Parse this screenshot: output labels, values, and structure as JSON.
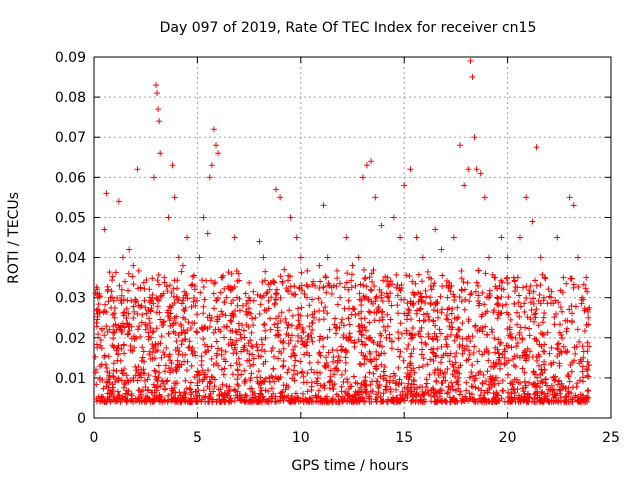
{
  "chart_data": {
    "type": "scatter",
    "title": "Day 097 of 2019, Rate Of TEC Index for receiver cn15",
    "xlabel": "GPS time / hours",
    "ylabel": "ROTI / TECUs",
    "xlim": [
      0,
      25
    ],
    "ylim": [
      0,
      0.09
    ],
    "x_ticks": [
      0,
      5,
      10,
      15,
      20,
      25
    ],
    "x_tick_labels": [
      "0",
      "5",
      "10",
      "15",
      "20",
      "25"
    ],
    "y_ticks": [
      0,
      0.01,
      0.02,
      0.03,
      0.04,
      0.05,
      0.06,
      0.07,
      0.08,
      0.09
    ],
    "y_tick_labels": [
      "0",
      "0.01",
      "0.02",
      "0.03",
      "0.04",
      "0.05",
      "0.06",
      "0.07",
      "0.08",
      "0.09"
    ],
    "grid": true,
    "marker": "plus",
    "color": "#ff0000",
    "series": [
      {
        "name": "ROTI",
        "x": [
          0.1,
          0.3,
          0.5,
          0.6,
          0.8,
          1.0,
          1.2,
          1.4,
          1.5,
          1.7,
          1.9,
          2.1,
          2.3,
          2.5,
          2.7,
          2.9,
          3.0,
          3.05,
          3.1,
          3.15,
          3.2,
          3.4,
          3.6,
          3.8,
          3.9,
          4.1,
          4.3,
          4.5,
          4.7,
          4.9,
          5.1,
          5.3,
          5.5,
          5.6,
          5.7,
          5.8,
          5.9,
          6.0,
          6.2,
          6.4,
          6.6,
          6.8,
          7.0,
          7.2,
          7.5,
          7.8,
          8.0,
          8.2,
          8.5,
          8.8,
          9.0,
          9.2,
          9.5,
          9.8,
          10.0,
          10.3,
          10.6,
          10.9,
          11.1,
          11.3,
          11.6,
          11.9,
          12.2,
          12.5,
          12.8,
          13.0,
          13.2,
          13.4,
          13.6,
          13.9,
          14.2,
          14.5,
          14.8,
          15.0,
          15.3,
          15.6,
          15.9,
          16.2,
          16.5,
          16.8,
          17.1,
          17.4,
          17.7,
          17.9,
          18.1,
          18.2,
          18.3,
          18.4,
          18.5,
          18.7,
          18.9,
          19.1,
          19.4,
          19.7,
          20.0,
          20.3,
          20.6,
          20.9,
          21.2,
          21.4,
          21.6,
          21.8,
          22.1,
          22.4,
          22.7,
          23.0,
          23.2,
          23.4,
          23.6,
          23.8,
          23.9
        ],
        "y": [
          0.012,
          0.018,
          0.047,
          0.056,
          0.03,
          0.025,
          0.054,
          0.04,
          0.034,
          0.042,
          0.038,
          0.062,
          0.028,
          0.022,
          0.03,
          0.06,
          0.083,
          0.081,
          0.077,
          0.074,
          0.066,
          0.035,
          0.05,
          0.063,
          0.055,
          0.04,
          0.038,
          0.045,
          0.033,
          0.028,
          0.04,
          0.05,
          0.046,
          0.06,
          0.063,
          0.072,
          0.068,
          0.066,
          0.035,
          0.03,
          0.032,
          0.045,
          0.036,
          0.028,
          0.03,
          0.025,
          0.044,
          0.04,
          0.032,
          0.057,
          0.055,
          0.037,
          0.05,
          0.045,
          0.04,
          0.03,
          0.034,
          0.038,
          0.053,
          0.04,
          0.033,
          0.03,
          0.045,
          0.038,
          0.04,
          0.06,
          0.063,
          0.064,
          0.055,
          0.048,
          0.035,
          0.05,
          0.045,
          0.058,
          0.062,
          0.045,
          0.04,
          0.035,
          0.047,
          0.042,
          0.03,
          0.045,
          0.068,
          0.058,
          0.062,
          0.089,
          0.085,
          0.07,
          0.062,
          0.061,
          0.055,
          0.04,
          0.035,
          0.045,
          0.04,
          0.035,
          0.045,
          0.055,
          0.049,
          0.0675,
          0.04,
          0.035,
          0.03,
          0.045,
          0.035,
          0.055,
          0.053,
          0.04,
          0.03,
          0.035,
          0.025
        ],
        "baseline_range": [
          0.004,
          0.02
        ]
      }
    ]
  }
}
